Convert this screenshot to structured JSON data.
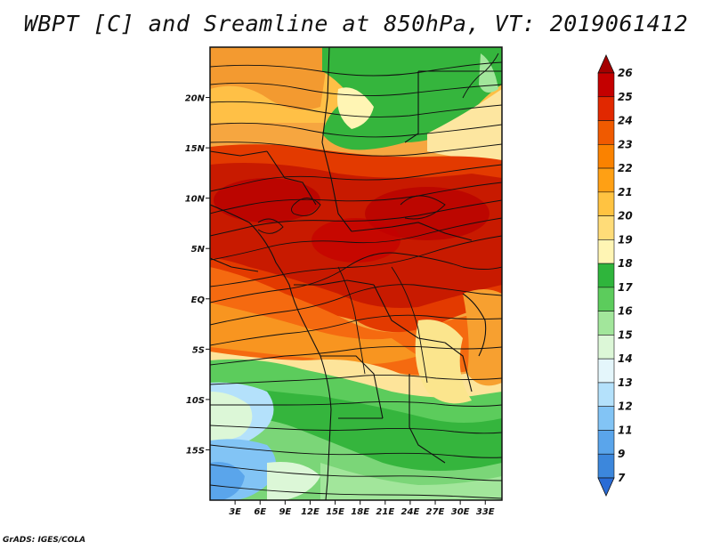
{
  "title": "WBPT [C] and Sreamline at 850hPa, VT: 2019061412",
  "credit": "GrADS: IGES/COLA",
  "map": {
    "region": "Central Africa",
    "lat_range": [
      -20,
      25
    ],
    "lon_range": [
      0,
      35
    ],
    "lat_ticks": [
      {
        "lat": 20,
        "label": "20N"
      },
      {
        "lat": 15,
        "label": "15N"
      },
      {
        "lat": 10,
        "label": "10N"
      },
      {
        "lat": 5,
        "label": "5N"
      },
      {
        "lat": 0,
        "label": "EQ"
      },
      {
        "lat": -5,
        "label": "5S"
      },
      {
        "lat": -10,
        "label": "10S"
      },
      {
        "lat": -15,
        "label": "15S"
      }
    ],
    "lon_ticks": [
      {
        "lon": 3,
        "label": "3E"
      },
      {
        "lon": 6,
        "label": "6E"
      },
      {
        "lon": 9,
        "label": "9E"
      },
      {
        "lon": 12,
        "label": "12E"
      },
      {
        "lon": 15,
        "label": "15E"
      },
      {
        "lon": 18,
        "label": "18E"
      },
      {
        "lon": 21,
        "label": "21E"
      },
      {
        "lon": 24,
        "label": "24E"
      },
      {
        "lon": 27,
        "label": "27E"
      },
      {
        "lon": 30,
        "label": "30E"
      },
      {
        "lon": 33,
        "label": "33E"
      }
    ]
  },
  "colorbar": {
    "levels": [
      {
        "label": "26",
        "color": "#a50000"
      },
      {
        "label": "25",
        "color": "#c40000"
      },
      {
        "label": "24",
        "color": "#e12800"
      },
      {
        "label": "23",
        "color": "#f05a00"
      },
      {
        "label": "22",
        "color": "#fa8200"
      },
      {
        "label": "21",
        "color": "#ffa014"
      },
      {
        "label": "20",
        "color": "#ffc341"
      },
      {
        "label": "19",
        "color": "#ffdc78"
      },
      {
        "label": "18",
        "color": "#fff5b4"
      },
      {
        "label": "17",
        "color": "#2fb53c"
      },
      {
        "label": "16",
        "color": "#5ccc5c"
      },
      {
        "label": "15",
        "color": "#a2e69b"
      },
      {
        "label": "14",
        "color": "#dcf7d7"
      },
      {
        "label": "13",
        "color": "#e4f6fb"
      },
      {
        "label": "12",
        "color": "#b4e1fb"
      },
      {
        "label": "11",
        "color": "#82c4f5"
      },
      {
        "label": "9",
        "color": "#5aa5eb"
      },
      {
        "label": "7",
        "color": "#3c87dc"
      }
    ],
    "bottom_arrow_color": "#2a6cd6"
  }
}
